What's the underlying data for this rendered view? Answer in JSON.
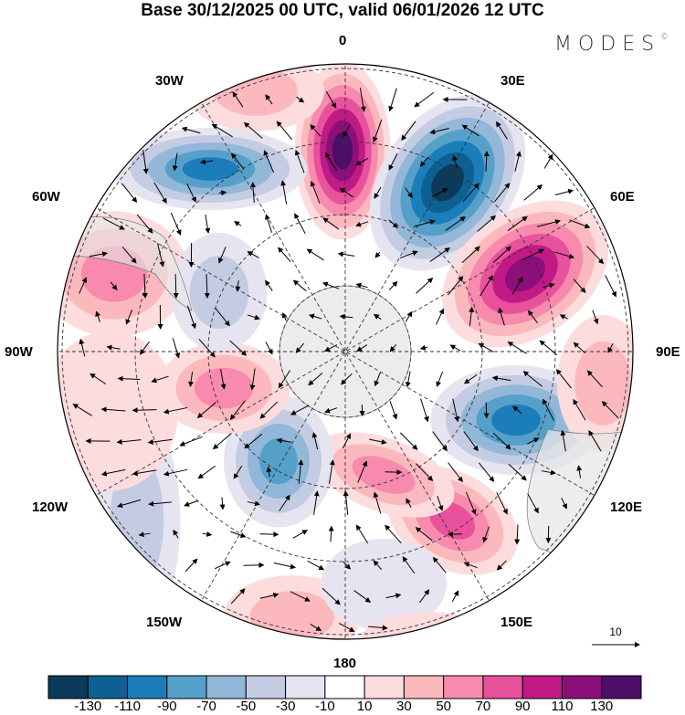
{
  "title": "Base 30/12/2025 00 UTC, valid 06/01/2026 12 UTC",
  "logo": "MODES",
  "logo_mark": "©",
  "longitude_labels": {
    "0": "0",
    "30E": "30E",
    "60E": "60E",
    "90E": "90E",
    "120E": "120E",
    "150E": "150E",
    "180": "180",
    "150W": "150W",
    "120W": "120W",
    "90W": "90W",
    "60W": "60W",
    "30W": "30W"
  },
  "reference_vector": "10",
  "colorbar": {
    "colors": [
      "#0b3a5a",
      "#0e5f92",
      "#1b7db9",
      "#55a0c9",
      "#93b7d8",
      "#c3cce2",
      "#e6e4f0",
      "#ffffff",
      "#fcdcdc",
      "#fbb9be",
      "#f78aad",
      "#e8519c",
      "#bf1a86",
      "#8c0f7a",
      "#4d0e69"
    ],
    "labels": [
      "-130",
      "-110",
      "-90",
      "-70",
      "-50",
      "-30",
      "-10",
      "10",
      "30",
      "50",
      "70",
      "90",
      "110",
      "130"
    ]
  }
}
